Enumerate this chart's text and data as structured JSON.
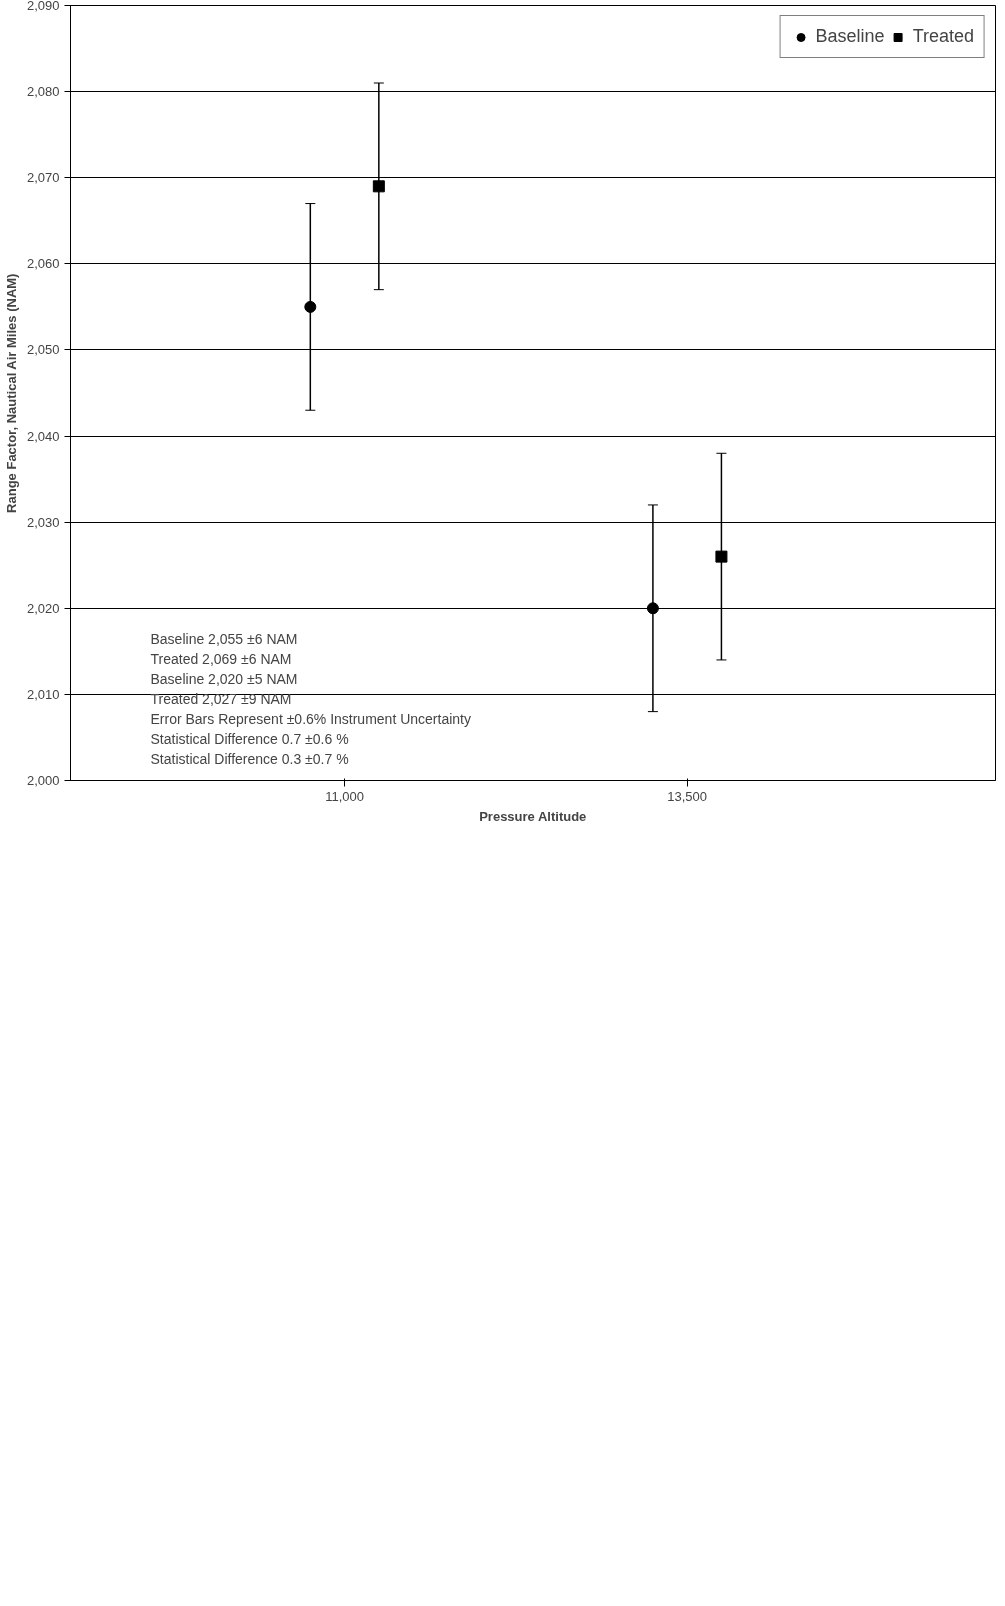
{
  "chart_data": {
    "type": "scatter",
    "xlabel": "Pressure Altitude",
    "ylabel": "Range Factor, Nautical Air Miles (NAM)",
    "categories": [
      "11,000",
      "13,500"
    ],
    "series": [
      {
        "name": "Baseline",
        "color": "#000000",
        "marker": "circle",
        "values": [
          2055,
          2020
        ],
        "errors": [
          12,
          12
        ]
      },
      {
        "name": "Treated",
        "color": "#000000",
        "marker": "square",
        "values": [
          2069,
          2026
        ],
        "errors": [
          12,
          12
        ]
      }
    ],
    "ylim": [
      2000,
      2090
    ],
    "yticks": [
      {
        "value": 2000,
        "label": "2,000"
      },
      {
        "value": 2010,
        "label": "2,010"
      },
      {
        "value": 2020,
        "label": "2,020"
      },
      {
        "value": 2030,
        "label": "2,030"
      },
      {
        "value": 2040,
        "label": "2,040"
      },
      {
        "value": 2050,
        "label": "2,050"
      },
      {
        "value": 2060,
        "label": "2,060"
      },
      {
        "value": 2070,
        "label": "2,070"
      },
      {
        "value": 2080,
        "label": "2,080"
      },
      {
        "value": 2090,
        "label": "2,090"
      }
    ],
    "grid": "y",
    "legend": "top right",
    "annotations": [
      "Baseline 2,055 ±6 NAM",
      "Treated 2,069 ±6 NAM",
      "Baseline 2,020 ±5 NAM",
      "Treated 2,027 ±9 NAM",
      "Error Bars Represent ±0.6% Instrument Uncertainty",
      "Statistical Difference 0.7 ±0.6 %",
      "Statistical Difference 0.3 ±0.7 %"
    ]
  }
}
